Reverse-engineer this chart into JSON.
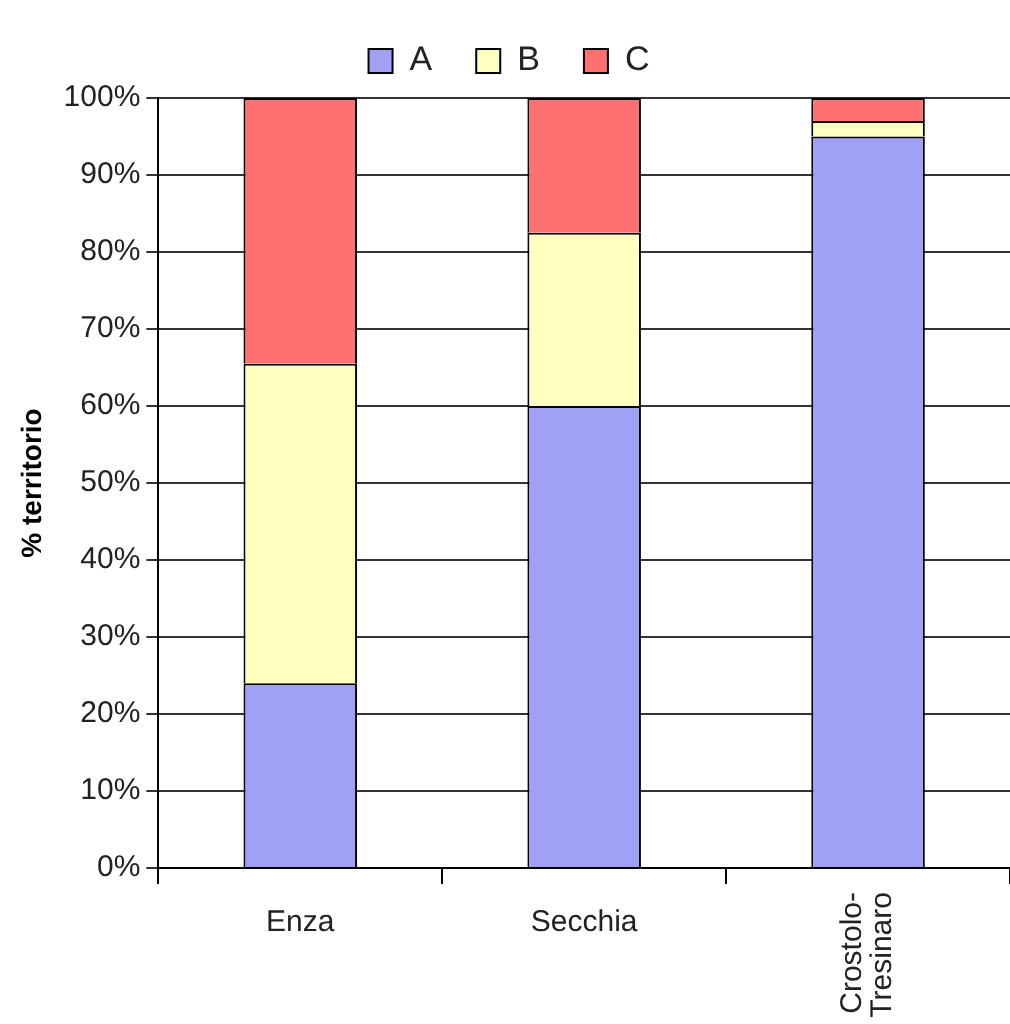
{
  "chart_data": {
    "type": "bar",
    "stacked": true,
    "ylabel": "% territorio",
    "categories": [
      "Enza",
      "Secchia",
      "Crostolo-Tresinaro"
    ],
    "series": [
      {
        "name": "A",
        "color": "#a0a0f4",
        "values": [
          24,
          60,
          95
        ]
      },
      {
        "name": "B",
        "color": "#ffffc0",
        "values": [
          41.5,
          22.5,
          2
        ]
      },
      {
        "name": "C",
        "color": "#ff7070",
        "values": [
          34.5,
          17.5,
          3
        ]
      }
    ],
    "ylim": [
      0,
      100
    ],
    "yticks": [
      {
        "value": 0,
        "label": "0%"
      },
      {
        "value": 10,
        "label": "10%"
      },
      {
        "value": 20,
        "label": "20%"
      },
      {
        "value": 30,
        "label": "30%"
      },
      {
        "value": 40,
        "label": "40%"
      },
      {
        "value": 50,
        "label": "50%"
      },
      {
        "value": 60,
        "label": "60%"
      },
      {
        "value": 70,
        "label": "70%"
      },
      {
        "value": 80,
        "label": "80%"
      },
      {
        "value": 90,
        "label": "90%"
      },
      {
        "value": 100,
        "label": "100%"
      }
    ],
    "grid": "y",
    "legend": "top"
  }
}
